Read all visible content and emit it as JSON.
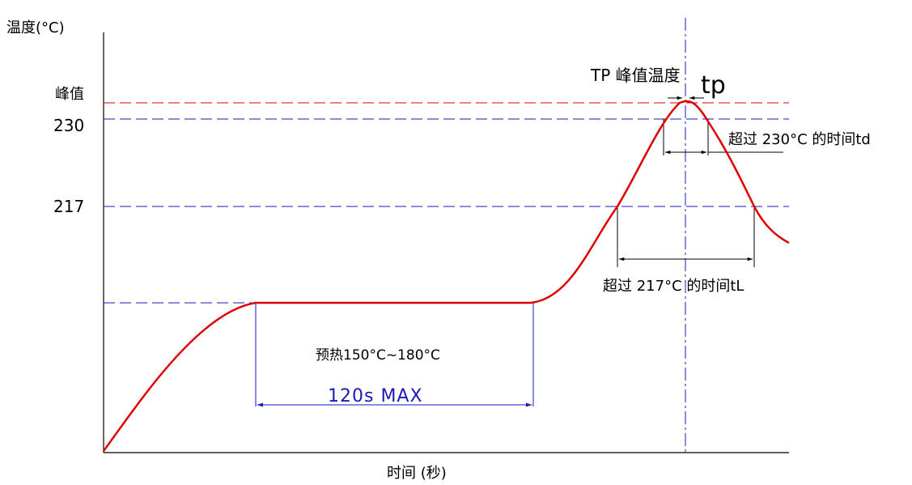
{
  "chart_data": {
    "type": "line",
    "title": "",
    "ylabel": "温度(°C)",
    "xlabel": "时间 (秒)",
    "y_ticks": [
      {
        "label": "峰值",
        "value": 235
      },
      {
        "label": "230",
        "value": 230
      },
      {
        "label": "217",
        "value": 217
      }
    ],
    "peak_label": "TP 峰值温度",
    "tp_label": "tp",
    "above_230_label": "超过 230°C 的时间td",
    "above_217_label": "超过 217°C 的时间tL",
    "preheat_label": "预热150°C~180°C",
    "preheat_time_label": "120s MAX",
    "colors": {
      "curve": "#e00000",
      "peak_line": "#e00000",
      "guide_lines": "#1a1ab8",
      "dimension_lines": "#000000",
      "axes": "#000000"
    }
  }
}
